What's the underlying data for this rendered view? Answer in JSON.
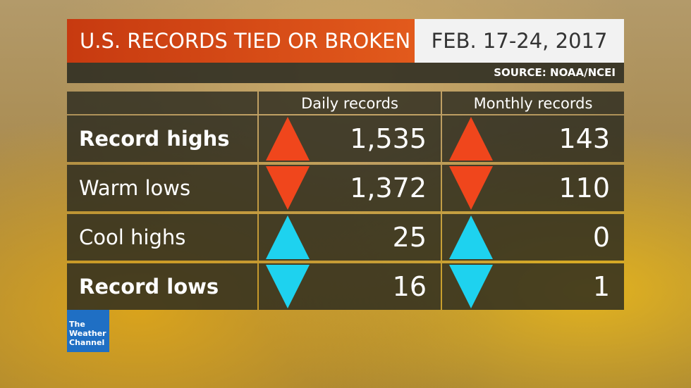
{
  "header": {
    "title": "U.S. RECORDS TIED OR BROKEN",
    "date": "FEB. 17-24, 2017",
    "source": "SOURCE: NOAA/NCEI"
  },
  "table": {
    "columns": [
      "Daily records",
      "Monthly records"
    ],
    "rows": [
      [
        "Record highs",
        "1,535",
        "143"
      ],
      [
        "Warm lows",
        "1,372",
        "110"
      ],
      [
        "Cool highs",
        "25",
        "0"
      ],
      [
        "Record lows",
        "16",
        "1"
      ]
    ]
  },
  "logo": {
    "lines": [
      "The",
      "Weather",
      "Channel"
    ]
  }
}
